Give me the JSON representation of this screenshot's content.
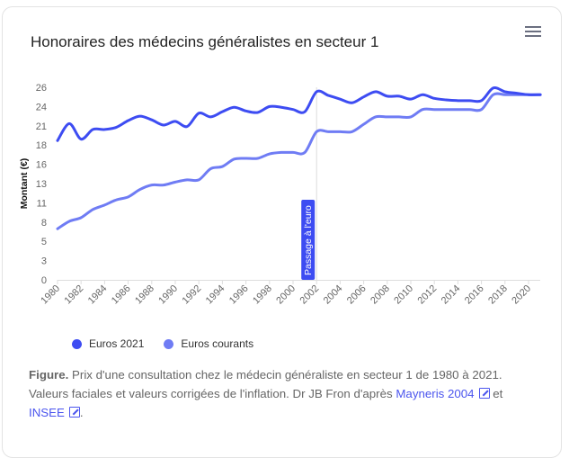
{
  "menu_icon": "hamburger-menu-icon",
  "chart_data": {
    "type": "line",
    "title": "Honoraires des médecins généralistes en secteur 1",
    "xlabel": "",
    "ylabel": "Montant (€)",
    "ylim": [
      0,
      26
    ],
    "xlim": [
      1980,
      2021
    ],
    "y_tick_labels": [
      "0",
      "3",
      "5",
      "8",
      "11",
      "13",
      "16",
      "18",
      "21",
      "24",
      "26"
    ],
    "x_tick_labels": [
      "1980",
      "1982",
      "1984",
      "1986",
      "1988",
      "1990",
      "1992",
      "1994",
      "1996",
      "1998",
      "2000",
      "2002",
      "2004",
      "2006",
      "2008",
      "2010",
      "2012",
      "2014",
      "2016",
      "2018",
      "2020"
    ],
    "x": [
      1980,
      1981,
      1982,
      1983,
      1984,
      1985,
      1986,
      1987,
      1988,
      1989,
      1990,
      1991,
      1992,
      1993,
      1994,
      1995,
      1996,
      1997,
      1998,
      1999,
      2000,
      2001,
      2002,
      2003,
      2004,
      2005,
      2006,
      2007,
      2008,
      2009,
      2010,
      2011,
      2012,
      2013,
      2014,
      2015,
      2016,
      2017,
      2018,
      2019,
      2020,
      2021
    ],
    "series": [
      {
        "name": "Euros 2021",
        "color": "#3d4cf2",
        "values": [
          18.8,
          21.1,
          19.0,
          20.3,
          20.3,
          20.6,
          21.5,
          22.1,
          21.6,
          20.9,
          21.4,
          20.7,
          22.5,
          22.0,
          22.7,
          23.3,
          22.8,
          22.6,
          23.4,
          23.3,
          23.0,
          22.7,
          25.4,
          24.9,
          24.4,
          23.9,
          24.7,
          25.4,
          24.8,
          24.8,
          24.4,
          25.0,
          24.5,
          24.3,
          24.2,
          24.2,
          24.2,
          25.9,
          25.4,
          25.2,
          25.0,
          25.0
        ]
      },
      {
        "name": "Euros courants",
        "color": "#6f7cf4",
        "values": [
          6.9,
          7.9,
          8.4,
          9.5,
          10.1,
          10.8,
          11.2,
          12.2,
          12.8,
          12.8,
          13.2,
          13.5,
          13.5,
          15.0,
          15.3,
          16.3,
          16.4,
          16.4,
          17.0,
          17.2,
          17.2,
          17.2,
          20,
          20,
          20,
          20,
          21,
          22,
          22,
          22,
          22,
          23,
          23,
          23,
          23,
          23,
          23,
          25,
          25,
          25,
          25,
          25
        ]
      }
    ],
    "annotations": [
      {
        "x": 2002,
        "label": "Passage à l'euro",
        "color": "#3d4cf2"
      }
    ],
    "legend": "bottom-left",
    "grid": false
  },
  "legend": {
    "items": [
      {
        "label": "Euros 2021",
        "color": "#3d4cf2"
      },
      {
        "label": "Euros courants",
        "color": "#6f7cf4"
      }
    ]
  },
  "caption": {
    "bold": "Figure.",
    "text": " Prix d'une consultation chez le médecin généraliste en secteur 1 de 1980 à 2021. Valeurs faciales et valeurs corrigées de l'inflation. Dr JB Fron d'après ",
    "link1": "Mayneris 2004",
    "middle": " et ",
    "link2": "INSEE",
    "end": "."
  }
}
